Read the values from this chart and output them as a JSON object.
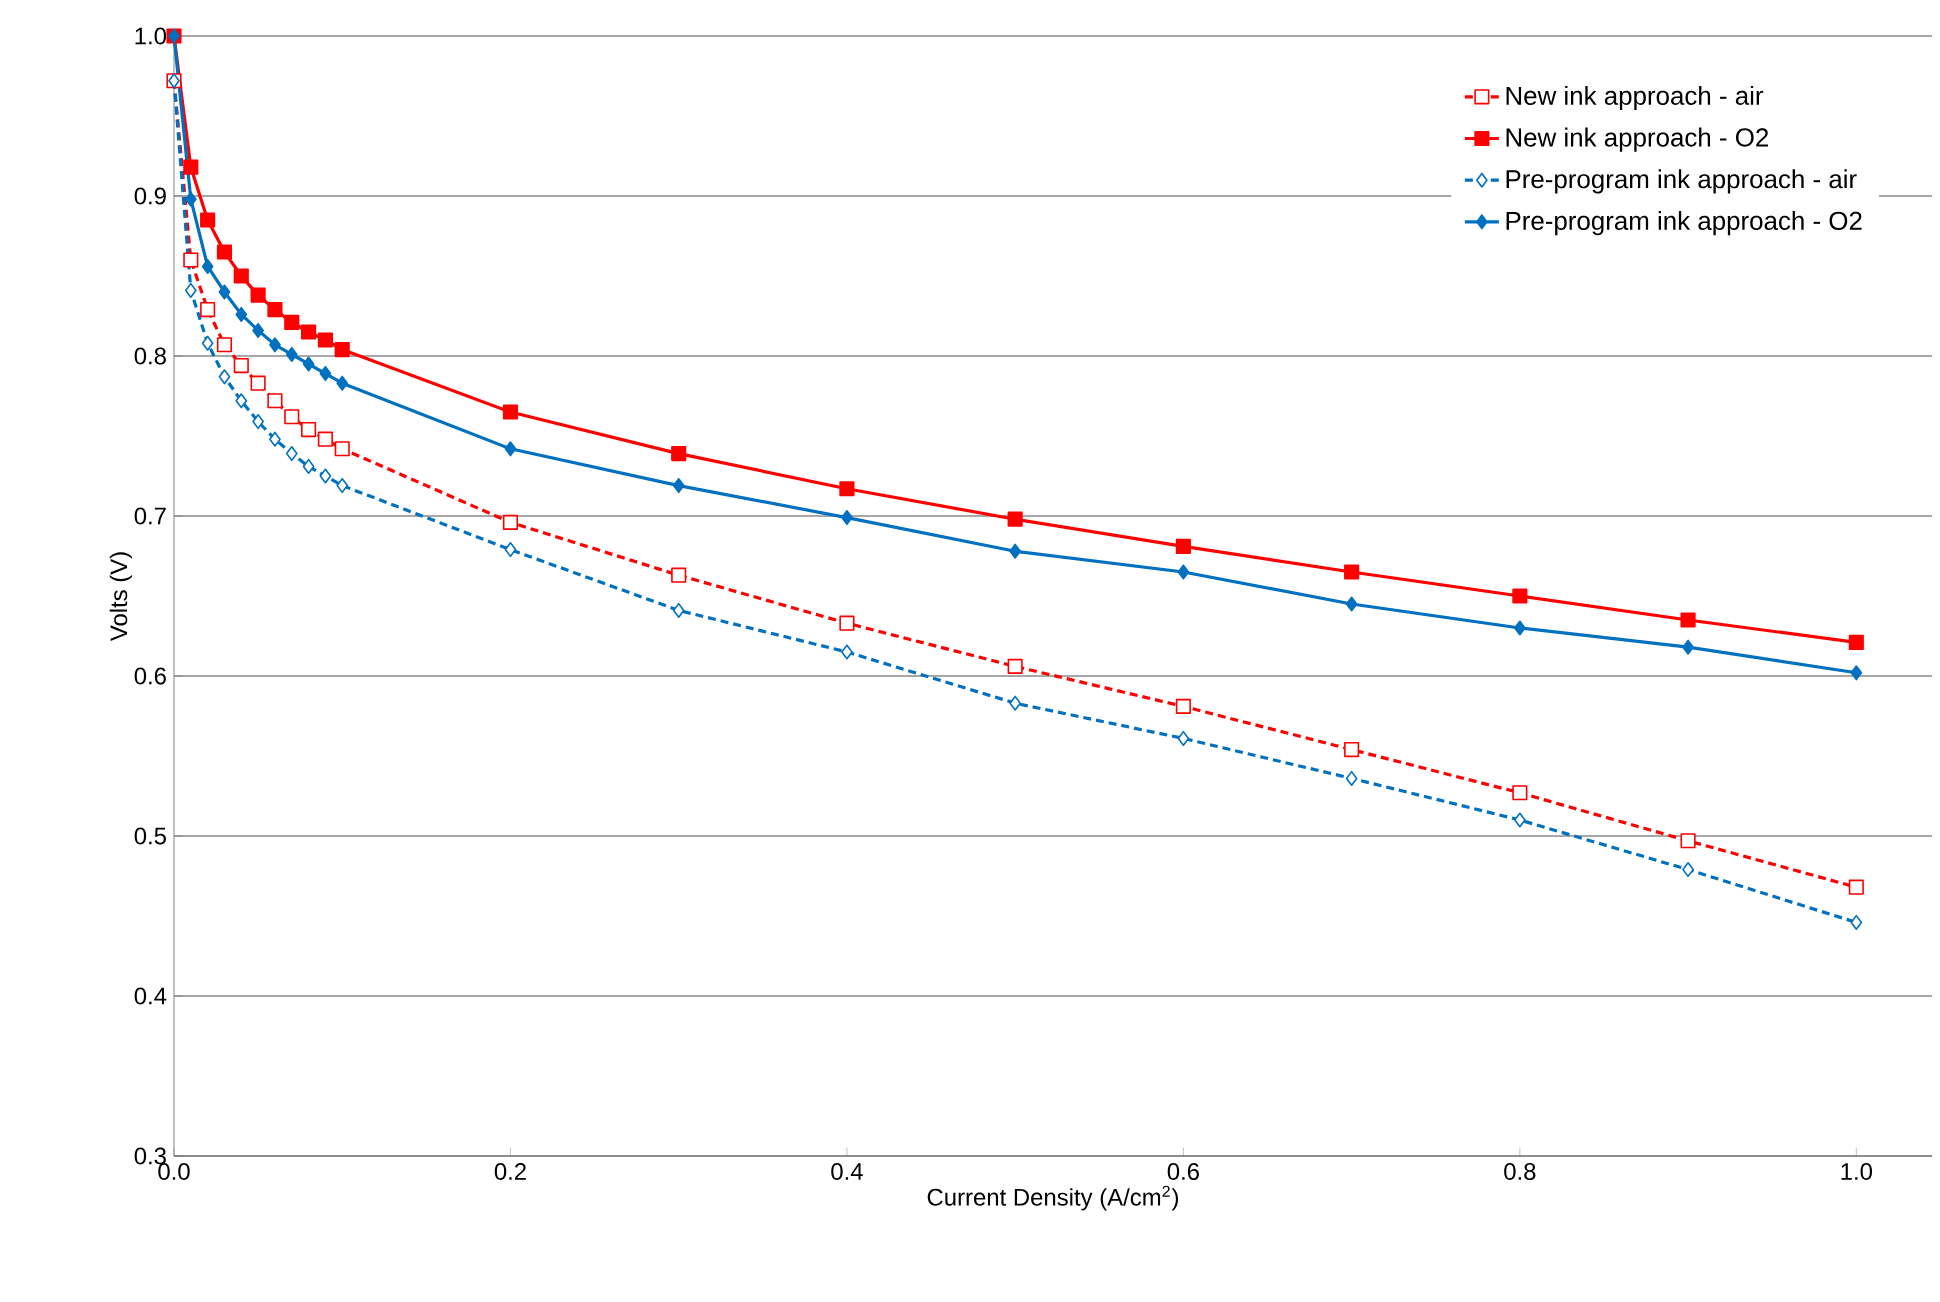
{
  "chart_data": {
    "type": "line",
    "xlabel": "Current Density (A/cm$^{2}$)",
    "ylabel": "Volts (V)",
    "xlim": [
      0,
      1.045
    ],
    "ylim": [
      0.3,
      1.0
    ],
    "xticks": [
      {
        "value": 0,
        "label": "0.0"
      },
      0.2,
      0.4,
      0.6,
      0.8,
      {
        "value": 1,
        "label": "1.0"
      }
    ],
    "yticks": [
      0.3,
      0.4,
      0.5,
      0.6,
      0.7,
      0.8,
      0.9,
      {
        "value": 1,
        "label": "1.0"
      }
    ],
    "grid": "y",
    "legend": "top right",
    "x": [
      0,
      0.01,
      0.02,
      0.03,
      0.04,
      0.05,
      0.06,
      0.07,
      0.08,
      0.09,
      0.1,
      0.2,
      0.3,
      0.4,
      0.5,
      0.6,
      0.7,
      0.8,
      0.9,
      1.0
    ],
    "series": [
      {
        "name": "New ink approach - air",
        "color": "#ff0000",
        "marker": "square",
        "line_style": "dashed",
        "values": [
          0.972,
          0.86,
          0.829,
          0.807,
          0.794,
          0.783,
          0.772,
          0.762,
          0.754,
          0.748,
          0.742,
          0.696,
          0.663,
          0.633,
          0.606,
          0.581,
          0.554,
          0.527,
          0.497,
          0.468
        ]
      },
      {
        "name": "New ink approach - O2",
        "color": "#ff0000",
        "marker": "square",
        "line_style": "solid",
        "values": [
          1.0,
          0.918,
          0.885,
          0.865,
          0.85,
          0.838,
          0.829,
          0.821,
          0.815,
          0.81,
          0.804,
          0.765,
          0.739,
          0.717,
          0.698,
          0.681,
          0.665,
          0.65,
          0.635,
          0.621
        ]
      },
      {
        "name": "Pre-program ink approach - air",
        "color": "#0070c0",
        "marker": "diamond",
        "line_style": "dashed",
        "values": [
          0.972,
          0.841,
          0.808,
          0.787,
          0.772,
          0.759,
          0.748,
          0.739,
          0.731,
          0.725,
          0.719,
          0.679,
          0.641,
          0.615,
          0.583,
          0.561,
          0.536,
          0.51,
          0.479,
          0.446
        ]
      },
      {
        "name": "Pre-program ink approach - O2",
        "color": "#0070c0",
        "marker": "diamond",
        "line_style": "solid",
        "values": [
          1.0,
          0.898,
          0.856,
          0.84,
          0.826,
          0.816,
          0.807,
          0.801,
          0.795,
          0.789,
          0.783,
          0.742,
          0.719,
          0.699,
          0.678,
          0.665,
          0.645,
          0.63,
          0.618,
          0.602
        ]
      }
    ]
  }
}
